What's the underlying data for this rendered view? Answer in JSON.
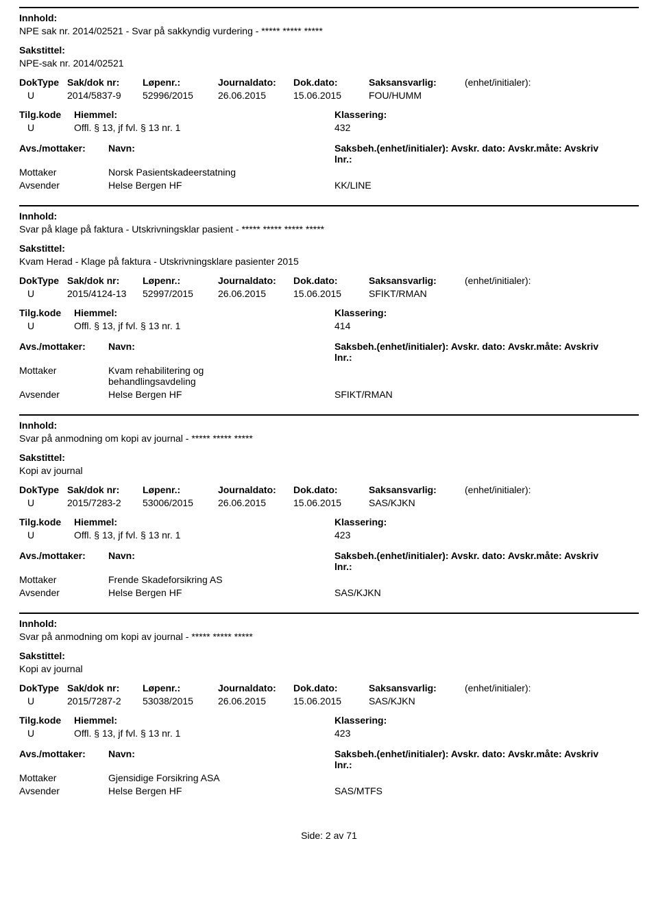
{
  "labels": {
    "innhold": "Innhold:",
    "sakstittel": "Sakstittel:",
    "doktype": "DokType",
    "sakdok": "Sak/dok nr:",
    "lopenr": "Løpenr.:",
    "journaldato": "Journaldato:",
    "dokdato": "Dok.dato:",
    "saksansvarlig": "Saksansvarlig:",
    "enhet": "(enhet/initialer):",
    "tilgkode": "Tilg.kode",
    "hjemmel": "Hiemmel:",
    "klassering": "Klassering:",
    "avsmottaker": "Avs./mottaker:",
    "navn": "Navn:",
    "saksbeh_full": "Saksbeh.(enhet/initialer): Avskr. dato:  Avskr.måte:  Avskriv lnr.:",
    "mottaker": "Mottaker",
    "avsender": "Avsender"
  },
  "entries": [
    {
      "innhold_text": "NPE sak nr. 2014/02521 - Svar på sakkyndig vurdering - ***** ***** *****",
      "sakstittel_text": "NPE-sak nr. 2014/02521",
      "doktype": "U",
      "sakdok": "2014/5837-9",
      "lopenr": "52996/2015",
      "journaldato": "26.06.2015",
      "dokdato": "15.06.2015",
      "saksansvarlig": "FOU/HUMM",
      "tilgkode": "U",
      "hjemmel": "Offl. § 13, jf fvl. § 13 nr. 1",
      "klassering": "432",
      "mottaker_navn": "Norsk Pasientskadeerstatning",
      "avsender_navn": "Helse Bergen HF",
      "avsender_code": "KK/LINE"
    },
    {
      "innhold_text": "Svar på klage på faktura - Utskrivningsklar pasient - ***** ***** ***** *****",
      "sakstittel_text": "Kvam Herad - Klage på faktura  - Utskrivningsklare pasienter 2015",
      "doktype": "U",
      "sakdok": "2015/4124-13",
      "lopenr": "52997/2015",
      "journaldato": "26.06.2015",
      "dokdato": "15.06.2015",
      "saksansvarlig": "SFIKT/RMAN",
      "tilgkode": "U",
      "hjemmel": "Offl. § 13, jf fvl. § 13 nr. 1",
      "klassering": "414",
      "mottaker_navn": "Kvam rehabilitering og behandlingsavdeling",
      "avsender_navn": "Helse Bergen HF",
      "avsender_code": "SFIKT/RMAN"
    },
    {
      "innhold_text": "Svar på anmodning om kopi av journal - ***** ***** *****",
      "sakstittel_text": "Kopi av journal",
      "doktype": "U",
      "sakdok": "2015/7283-2",
      "lopenr": "53006/2015",
      "journaldato": "26.06.2015",
      "dokdato": "15.06.2015",
      "saksansvarlig": "SAS/KJKN",
      "tilgkode": "U",
      "hjemmel": "Offl. § 13, jf fvl. § 13 nr. 1",
      "klassering": "423",
      "mottaker_navn": "Frende Skadeforsikring AS",
      "avsender_navn": "Helse Bergen HF",
      "avsender_code": "SAS/KJKN"
    },
    {
      "innhold_text": "Svar på anmodning om kopi av journal - ***** ***** *****",
      "sakstittel_text": "Kopi av journal",
      "doktype": "U",
      "sakdok": "2015/7287-2",
      "lopenr": "53038/2015",
      "journaldato": "26.06.2015",
      "dokdato": "15.06.2015",
      "saksansvarlig": "SAS/KJKN",
      "tilgkode": "U",
      "hjemmel": "Offl. § 13, jf fvl. § 13 nr. 1",
      "klassering": "423",
      "mottaker_navn": "Gjensidige Forsikring ASA",
      "avsender_navn": "Helse Bergen HF",
      "avsender_code": "SAS/MTFS"
    }
  ],
  "footer": "Side: 2  av  71"
}
